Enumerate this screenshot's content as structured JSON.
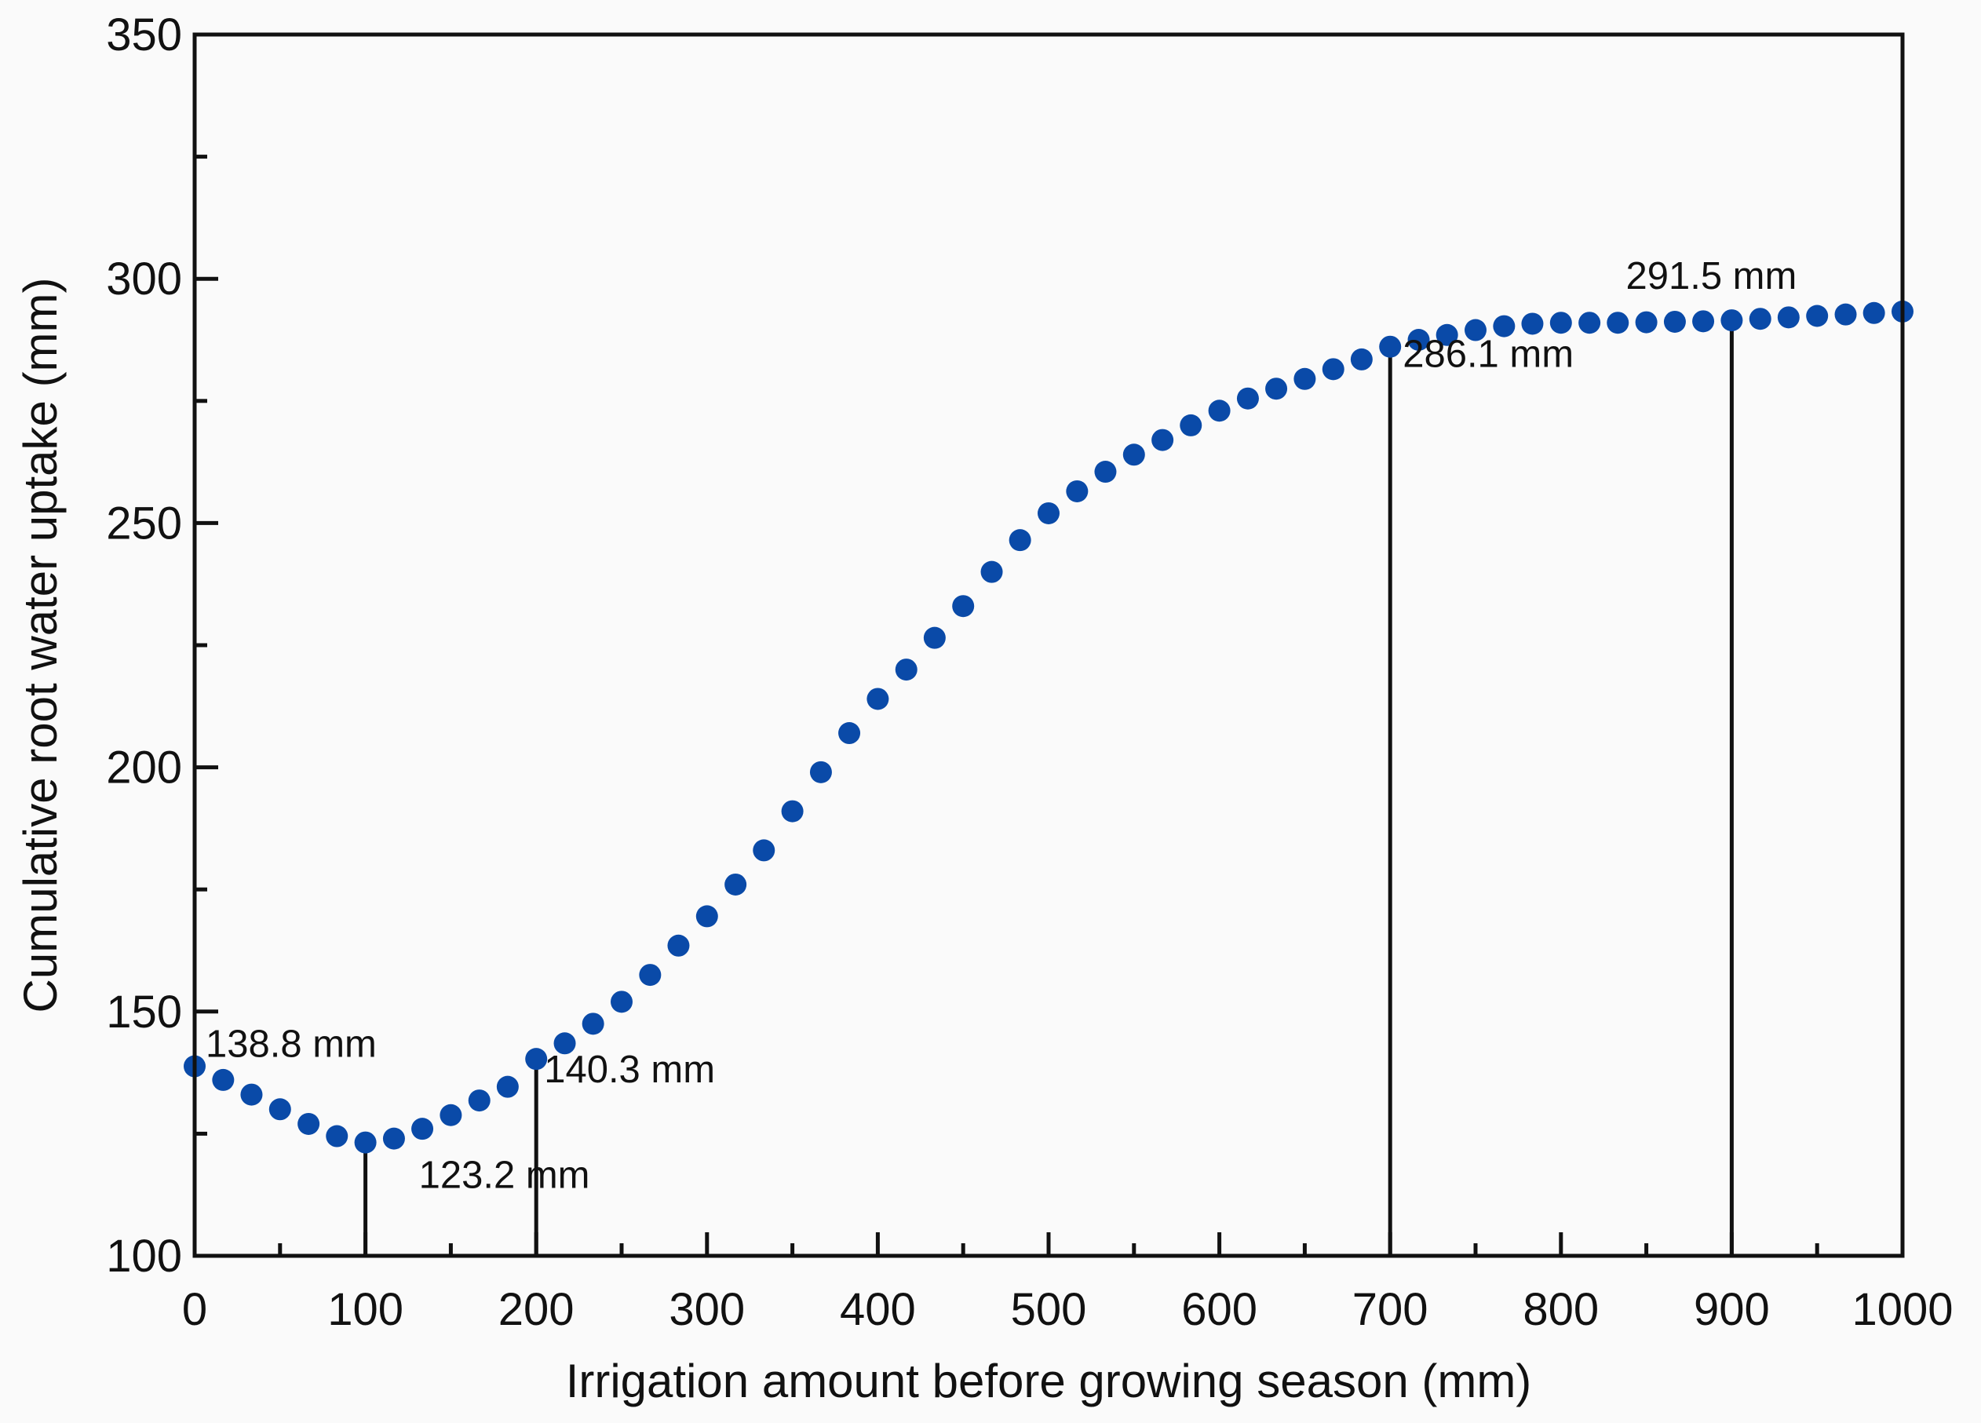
{
  "chart_data": {
    "type": "scatter",
    "title": "",
    "xlabel": "Irrigation amount before growing season (mm)",
    "ylabel": "Cumulative root water uptake (mm)",
    "xlim": [
      0,
      1000
    ],
    "ylim": [
      100,
      350
    ],
    "xticks": [
      "0",
      "100",
      "200",
      "300",
      "400",
      "500",
      "600",
      "700",
      "800",
      "900",
      "1000"
    ],
    "yticks": [
      "100",
      "150",
      "200",
      "250",
      "300",
      "350"
    ],
    "grid": false,
    "marker_color": "#0a4aa8",
    "series": [
      {
        "name": "Cumulative root water uptake",
        "x": [
          0,
          16.7,
          33.3,
          50,
          66.7,
          83.3,
          100,
          116.7,
          133.3,
          150,
          166.7,
          183.3,
          200,
          216.7,
          233.3,
          250,
          266.7,
          283.3,
          300,
          316.7,
          333.3,
          350,
          366.7,
          383.3,
          400,
          416.7,
          433.3,
          450,
          466.7,
          483.3,
          500,
          516.7,
          533.3,
          550,
          566.7,
          583.3,
          600,
          616.7,
          633.3,
          650,
          666.7,
          683.3,
          700,
          716.7,
          733.3,
          750,
          766.7,
          783.3,
          800,
          816.7,
          833.3,
          850,
          866.7,
          883.3,
          900,
          916.7,
          933.3,
          950,
          966.7,
          983.3,
          1000
        ],
        "y": [
          138.8,
          136,
          133,
          130,
          127,
          124.5,
          123.2,
          124,
          126,
          128.8,
          131.8,
          134.6,
          140.3,
          143.5,
          147.5,
          152,
          157.5,
          163.5,
          169.5,
          176,
          183,
          191,
          199,
          207,
          214,
          220,
          226.5,
          233,
          240,
          246.5,
          252,
          256.5,
          260.5,
          264,
          267,
          270,
          273,
          275.5,
          277.5,
          279.5,
          281.5,
          283.5,
          286.1,
          287.5,
          288.5,
          289.5,
          290.3,
          290.8,
          291,
          291,
          291,
          291.1,
          291.2,
          291.3,
          291.5,
          291.8,
          292.1,
          292.4,
          292.7,
          293,
          293.3
        ]
      }
    ],
    "annotations": [
      {
        "x": 0,
        "y": 138.8,
        "label": "138.8 mm"
      },
      {
        "x": 100,
        "y": 123.2,
        "label": "123.2 mm"
      },
      {
        "x": 200,
        "y": 140.3,
        "label": "140.3 mm"
      },
      {
        "x": 700,
        "y": 286.1,
        "label": "286.1 mm"
      },
      {
        "x": 900,
        "y": 291.5,
        "label": "291.5 mm"
      }
    ]
  }
}
